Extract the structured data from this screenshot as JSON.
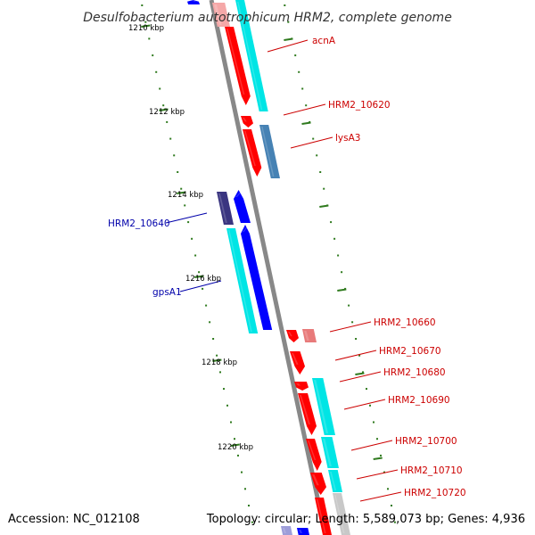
{
  "title": "Desulfobacterium autotrophicum HRM2, complete genome",
  "accession": "Accession: NC_012108",
  "summary": "Topology: circular; Length: 5,589,073 bp; Genes: 4,936",
  "colors": {
    "backbone": "#888888",
    "ruler": "#2f7a1e",
    "forward_label": "#cc0000",
    "reverse_label": "#0000aa",
    "red_gene": "#ff0000",
    "pink_gene": "#e87a7a",
    "cyan_gene": "#00e5e5",
    "blue_gene": "#0000ff",
    "steel_gene": "#4682b4",
    "indigo_gene": "#3a3580",
    "grey_gene": "#c8c8c8"
  },
  "ruler_labels": [
    "1210 kbp",
    "1212 kbp",
    "1214 kbp",
    "1216 kbp",
    "1218 kbp",
    "1220 kbp"
  ],
  "gene_labels": {
    "acnA": "acnA",
    "hrm2_10620": "HRM2_10620",
    "lysA3": "lysA3",
    "hrm2_10640": "HRM2_10640",
    "gpsA1": "gpsA1",
    "hrm2_10660": "HRM2_10660",
    "hrm2_10670": "HRM2_10670",
    "hrm2_10680": "HRM2_10680",
    "hrm2_10690": "HRM2_10690",
    "hrm2_10700": "HRM2_10700",
    "hrm2_10710": "HRM2_10710",
    "hrm2_10720": "HRM2_10720"
  }
}
